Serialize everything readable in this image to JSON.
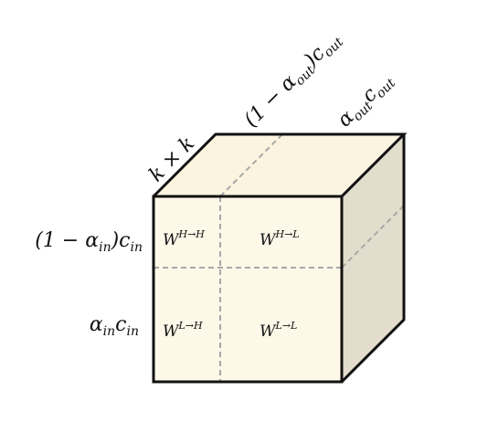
{
  "colors": {
    "front_face": "#fdf8e8",
    "top_face": "#fbf4e0",
    "side_face": "#e2ddcc",
    "edge": "#111111",
    "divider": "#a8a8a8"
  },
  "labels": {
    "kernel": {
      "base": "k × k"
    },
    "top_left": {
      "base": "(1 − α",
      "sub1": "out",
      "mid": ")c",
      "sub2": "out"
    },
    "top_right": {
      "base1": "α",
      "sub1": "out",
      "base2": "c",
      "sub2": "out"
    },
    "row_high": {
      "base": "(1 − α",
      "sub1": "in",
      "mid": ")c",
      "sub2": "in"
    },
    "row_low": {
      "base1": "α",
      "sub1": "in",
      "base2": "c",
      "sub2": "in"
    }
  },
  "cells": [
    {
      "id": "hh",
      "base": "W",
      "sup": "H→H"
    },
    {
      "id": "hl",
      "base": "W",
      "sup": "H→L"
    },
    {
      "id": "lh",
      "base": "W",
      "sup": "L→H"
    },
    {
      "id": "ll",
      "base": "W",
      "sup": "L→L"
    }
  ]
}
